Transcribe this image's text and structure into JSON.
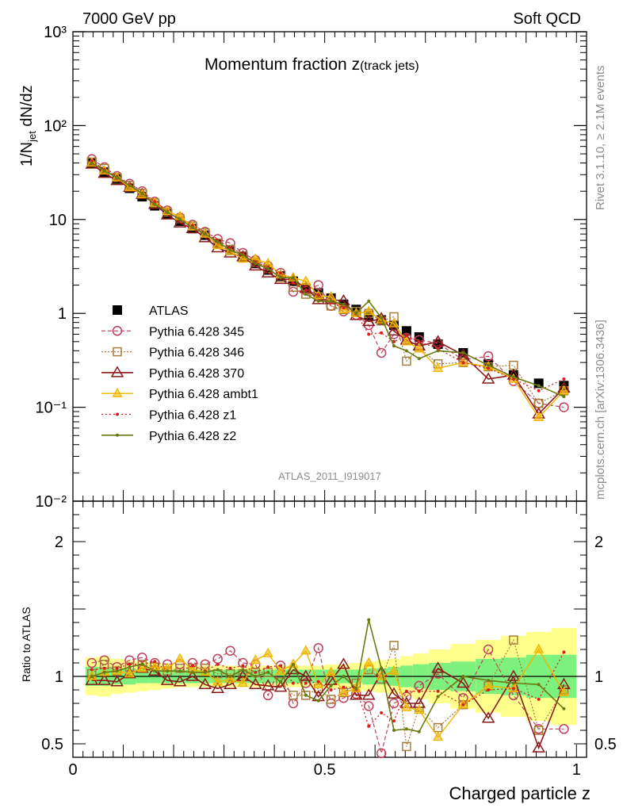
{
  "header": {
    "left": "7000 GeV pp",
    "right": "Soft QCD"
  },
  "side": {
    "rivet": "Rivet 3.1.10, ≥ 2.1M events",
    "mcplots": "mcplots.cern.ch [arXiv:1306.3436]"
  },
  "plot_title": {
    "main": "Momentum fraction z",
    "sub": "(track jets)"
  },
  "analysis_id": "ATLAS_2011_I919017",
  "ylabel_main": "1/N_jet dN/dz",
  "ylabel_ratio": "Ratio to ATLAS",
  "xlabel": "Charged particle z",
  "colors": {
    "atlas": "#000000",
    "p345": "#c0405a",
    "p346": "#a67c3c",
    "p370": "#8b1a1a",
    "ambt1": "#f2b400",
    "z1": "#d42020",
    "z2": "#6b7a10",
    "band_inner": "#7df07d",
    "band_outer": "#ffff8c"
  },
  "chart_data": [
    {
      "type": "scatter",
      "name": "main",
      "ylog": true,
      "xlim": [
        0,
        1
      ],
      "ylim": [
        0.01,
        1000
      ],
      "yticks": [
        0.01,
        0.1,
        1,
        10,
        100,
        1000
      ],
      "ytick_labels": [
        "10⁻²",
        "10⁻¹",
        "1",
        "10",
        "10²",
        "10³"
      ],
      "x": [
        0.0375,
        0.0625,
        0.0875,
        0.1125,
        0.1375,
        0.1625,
        0.1875,
        0.2125,
        0.2375,
        0.2625,
        0.2875,
        0.3125,
        0.3375,
        0.3625,
        0.3875,
        0.4125,
        0.4375,
        0.4625,
        0.4875,
        0.5125,
        0.5375,
        0.5625,
        0.5875,
        0.6125,
        0.6375,
        0.6625,
        0.6875,
        0.725,
        0.775,
        0.825,
        0.875,
        0.925,
        0.975
      ],
      "series": [
        {
          "name": "ATLAS",
          "key": "atlas",
          "marker": "square-filled",
          "values": [
            40,
            32,
            27,
            21.5,
            17.5,
            14,
            11.5,
            9.6,
            8,
            6.8,
            5.5,
            4.7,
            4.0,
            3.4,
            2.9,
            2.5,
            2.2,
            1.85,
            1.65,
            1.45,
            1.25,
            1.1,
            0.95,
            0.85,
            0.75,
            0.65,
            0.56,
            0.47,
            0.38,
            0.29,
            0.22,
            0.18,
            0.17
          ]
        },
        {
          "name": "Pythia 6.428 345",
          "key": "p345",
          "marker": "circle-open",
          "values": [
            44,
            36,
            29,
            24,
            20,
            15.5,
            12.5,
            10.5,
            8.8,
            7.4,
            6.2,
            5.6,
            4.4,
            3.7,
            3.2,
            2.7,
            1.7,
            1.75,
            2.0,
            1.2,
            1.05,
            0.96,
            0.75,
            0.38,
            0.6,
            0.55,
            0.52,
            0.48,
            0.32,
            0.35,
            0.19,
            0.11,
            0.1
          ]
        },
        {
          "name": "Pythia 6.428 346",
          "key": "p346",
          "marker": "square-open",
          "values": [
            41,
            35,
            28,
            23,
            19,
            15,
            12,
            10.2,
            8.5,
            7.2,
            5.6,
            4.8,
            4.1,
            3.5,
            3.0,
            2.4,
            1.9,
            1.6,
            1.5,
            1.2,
            1.1,
            1.05,
            1.0,
            0.83,
            0.92,
            0.31,
            0.43,
            0.29,
            0.3,
            0.27,
            0.28,
            0.11,
            0.15
          ]
        },
        {
          "name": "Pythia 6.428 370",
          "key": "p370",
          "marker": "triangle-open",
          "values": [
            39,
            31,
            26,
            22,
            18.5,
            14.5,
            11.2,
            9.2,
            8.0,
            6.4,
            5.0,
            4.4,
            4.0,
            3.2,
            2.7,
            2.3,
            2.3,
            1.85,
            1.4,
            1.4,
            1.36,
            0.95,
            0.82,
            0.88,
            0.65,
            0.52,
            0.45,
            0.5,
            0.36,
            0.2,
            0.22,
            0.085,
            0.16
          ]
        },
        {
          "name": "Pythia 6.428 ambt1",
          "key": "ambt1",
          "marker": "triangle-filled-small",
          "values": [
            40,
            33,
            28,
            22,
            18.5,
            15,
            12.2,
            10.8,
            8.4,
            7.0,
            5.3,
            4.6,
            3.8,
            3.8,
            3.4,
            2.6,
            2.4,
            2.2,
            1.55,
            1.5,
            1.1,
            1.0,
            1.05,
            0.85,
            0.78,
            0.5,
            0.42,
            0.26,
            0.3,
            0.27,
            0.2,
            0.078,
            0.15
          ]
        },
        {
          "name": "Pythia 6.428 z1",
          "key": "z1",
          "marker": "dot",
          "values": [
            42,
            34,
            28.5,
            23.5,
            19,
            15.5,
            12,
            10,
            8.6,
            7.1,
            6.0,
            5.0,
            4.3,
            3.5,
            3.1,
            2.7,
            2.1,
            1.75,
            1.58,
            1.3,
            1.15,
            1.0,
            0.6,
            0.62,
            0.5,
            0.58,
            0.5,
            0.42,
            0.3,
            0.26,
            0.2,
            0.15,
            0.2
          ]
        },
        {
          "name": "Pythia 6.428 z2",
          "key": "z2",
          "marker": "dot",
          "values": [
            40,
            33,
            28,
            23,
            19,
            14.5,
            12,
            10,
            8.2,
            7.0,
            5.8,
            4.7,
            4.2,
            3.4,
            3.0,
            2.4,
            2.4,
            1.6,
            1.35,
            1.35,
            1.25,
            1.0,
            1.35,
            0.9,
            0.45,
            0.4,
            0.33,
            0.4,
            0.38,
            0.28,
            0.21,
            0.17,
            0.13
          ]
        }
      ]
    },
    {
      "type": "scatter",
      "name": "ratio",
      "xlim": [
        0,
        1.02
      ],
      "ylim": [
        0.4,
        2.3
      ],
      "yticks": [
        0.5,
        1,
        2
      ],
      "ytick_labels": [
        "0.5",
        "1",
        "2"
      ],
      "xticks": [
        0,
        0.5,
        1
      ],
      "xtick_labels": [
        "0",
        "0.5",
        "1"
      ],
      "x": [
        0.0375,
        0.0625,
        0.0875,
        0.1125,
        0.1375,
        0.1625,
        0.1875,
        0.2125,
        0.2375,
        0.2625,
        0.2875,
        0.3125,
        0.3375,
        0.3625,
        0.3875,
        0.4125,
        0.4375,
        0.4625,
        0.4875,
        0.5125,
        0.5375,
        0.5625,
        0.5875,
        0.6125,
        0.6375,
        0.6625,
        0.6875,
        0.725,
        0.775,
        0.825,
        0.875,
        0.925,
        0.975
      ],
      "band_inner": [
        0.07,
        0.07,
        0.06,
        0.06,
        0.05,
        0.05,
        0.05,
        0.05,
        0.05,
        0.05,
        0.05,
        0.05,
        0.05,
        0.05,
        0.05,
        0.05,
        0.05,
        0.05,
        0.05,
        0.05,
        0.05,
        0.05,
        0.06,
        0.06,
        0.07,
        0.08,
        0.09,
        0.1,
        0.11,
        0.13,
        0.14,
        0.16,
        0.16
      ],
      "band_outer": [
        0.14,
        0.15,
        0.13,
        0.12,
        0.11,
        0.1,
        0.09,
        0.08,
        0.08,
        0.08,
        0.08,
        0.08,
        0.08,
        0.08,
        0.08,
        0.08,
        0.08,
        0.08,
        0.08,
        0.09,
        0.09,
        0.1,
        0.11,
        0.12,
        0.13,
        0.15,
        0.17,
        0.2,
        0.24,
        0.27,
        0.3,
        0.33,
        0.36
      ],
      "series": [
        {
          "key": "p345",
          "values": [
            1.1,
            1.12,
            1.07,
            1.12,
            1.14,
            1.1,
            1.09,
            1.09,
            1.1,
            1.09,
            1.13,
            1.19,
            1.1,
            1.09,
            0.86,
            1.08,
            0.8,
            0.95,
            1.21,
            0.8,
            0.84,
            0.87,
            0.78,
            0.43,
            0.8,
            0.85,
            0.93,
            1.02,
            0.84,
            1.2,
            0.86,
            0.61,
            0.61
          ]
        },
        {
          "key": "p346",
          "values": [
            1.02,
            1.09,
            1.04,
            1.07,
            1.09,
            1.07,
            1.04,
            1.06,
            1.06,
            1.06,
            1.02,
            1.02,
            1.02,
            1.03,
            1.03,
            0.96,
            0.86,
            0.86,
            0.91,
            0.83,
            0.88,
            0.95,
            1.05,
            0.98,
            1.23,
            0.48,
            0.77,
            0.62,
            0.79,
            0.93,
            1.27,
            0.6,
            0.9
          ]
        },
        {
          "key": "p370",
          "values": [
            0.97,
            0.97,
            0.96,
            1.02,
            1.06,
            1.04,
            0.97,
            0.96,
            1.0,
            0.94,
            0.91,
            0.94,
            1.0,
            0.94,
            0.93,
            0.92,
            1.05,
            1.0,
            0.85,
            0.97,
            1.09,
            0.86,
            0.86,
            1.03,
            0.87,
            0.8,
            0.8,
            1.06,
            0.95,
            0.69,
            1.0,
            0.47,
            0.94
          ]
        },
        {
          "key": "ambt1",
          "values": [
            1.0,
            1.03,
            1.04,
            1.02,
            1.06,
            1.07,
            1.06,
            1.13,
            1.05,
            1.03,
            0.96,
            0.98,
            0.95,
            1.12,
            1.17,
            1.04,
            1.09,
            1.19,
            0.94,
            1.03,
            0.88,
            0.91,
            1.1,
            1.0,
            1.04,
            0.77,
            0.75,
            0.55,
            0.79,
            0.93,
            0.91,
            1.2,
            0.88
          ]
        },
        {
          "key": "z1",
          "values": [
            1.05,
            1.06,
            1.06,
            1.09,
            1.09,
            1.11,
            1.04,
            1.04,
            1.08,
            1.04,
            1.09,
            1.06,
            1.08,
            1.03,
            1.07,
            1.08,
            0.95,
            0.95,
            0.96,
            0.9,
            0.92,
            0.91,
            0.63,
            0.73,
            0.67,
            0.89,
            0.89,
            0.89,
            0.79,
            0.9,
            0.91,
            0.83,
            1.18
          ]
        },
        {
          "key": "z2",
          "values": [
            1.0,
            1.03,
            1.04,
            1.07,
            1.09,
            1.04,
            1.04,
            1.04,
            1.03,
            1.03,
            1.05,
            1.0,
            1.05,
            1.0,
            1.03,
            0.96,
            1.09,
            0.86,
            0.82,
            0.93,
            1.0,
            0.91,
            1.42,
            1.06,
            0.6,
            0.61,
            0.59,
            0.85,
            1.0,
            0.97,
            0.95,
            0.94,
            0.76
          ]
        }
      ]
    }
  ],
  "legend": [
    {
      "label": "ATLAS",
      "key": "atlas"
    },
    {
      "label": "Pythia 6.428 345",
      "key": "p345"
    },
    {
      "label": "Pythia 6.428 346",
      "key": "p346"
    },
    {
      "label": "Pythia 6.428 370",
      "key": "p370"
    },
    {
      "label": "Pythia 6.428 ambt1",
      "key": "ambt1"
    },
    {
      "label": "Pythia 6.428 z1",
      "key": "z1"
    },
    {
      "label": "Pythia 6.428 z2",
      "key": "z2"
    }
  ]
}
